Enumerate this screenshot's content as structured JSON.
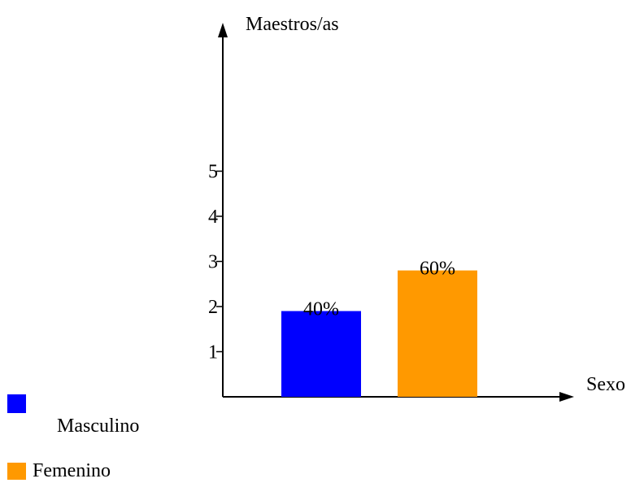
{
  "chart_data": {
    "type": "bar",
    "title": "",
    "ylabel": "Maestros/as",
    "xlabel": "Sexo",
    "ylim": [
      0,
      6.2
    ],
    "yticks": [
      1,
      2,
      3,
      4,
      5
    ],
    "categories": [
      "Masculino",
      "Femenino"
    ],
    "values": [
      1.9,
      2.8
    ],
    "data_labels": [
      "40%",
      "60%"
    ],
    "colors": [
      "#0000ff",
      "#ff9900"
    ],
    "grid": false,
    "legend": {
      "placement": "bottom-left",
      "entries": [
        {
          "label": "Masculino",
          "color": "#0000ff"
        },
        {
          "label": "Femenino",
          "color": "#ff9900"
        }
      ]
    }
  }
}
